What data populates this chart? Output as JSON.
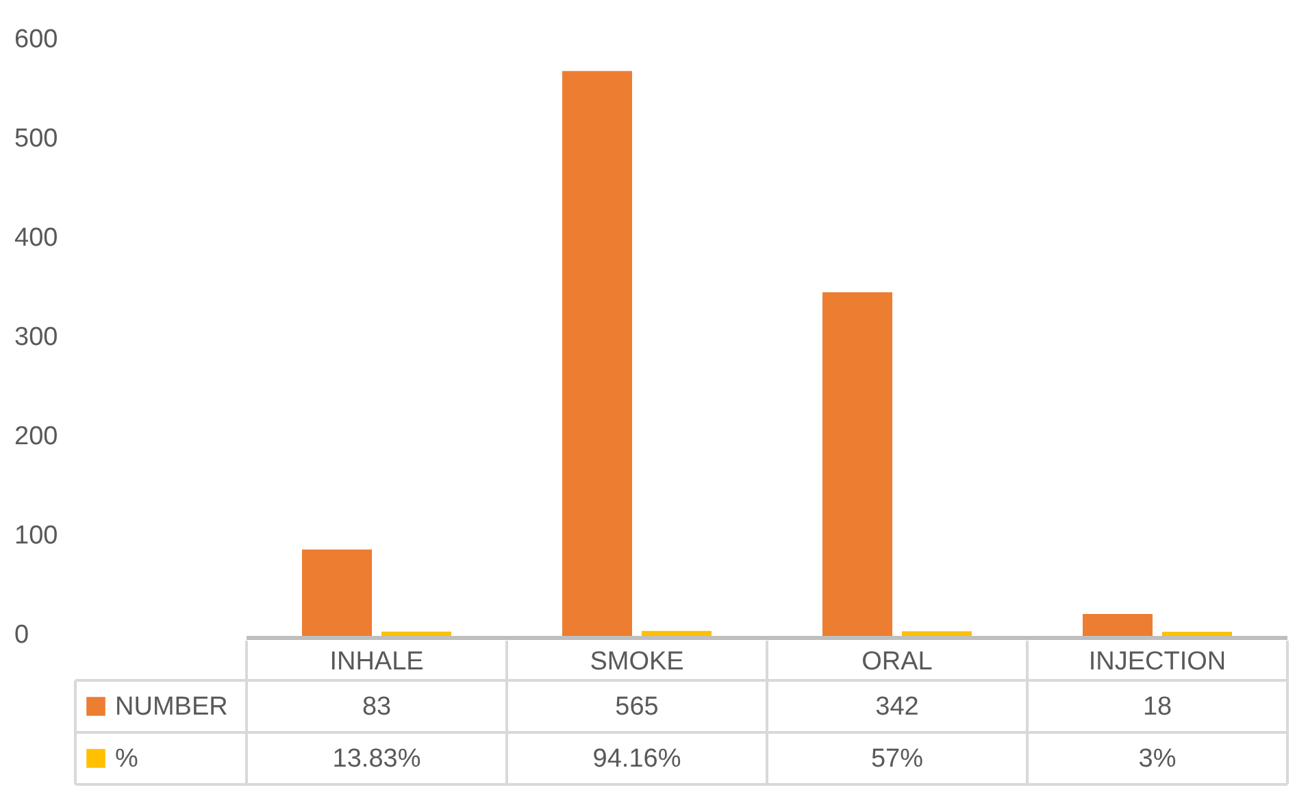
{
  "chart_data": {
    "type": "bar",
    "categories": [
      "INHALE",
      "SMOKE",
      "ORAL",
      "INJECTION"
    ],
    "series": [
      {
        "name": "NUMBER",
        "color": "#ed7d31",
        "values": [
          83,
          565,
          342,
          18
        ],
        "value_labels": [
          "83",
          "565",
          "342",
          "18"
        ]
      },
      {
        "name": "%",
        "color": "#ffc000",
        "values": [
          0.1383,
          0.9416,
          0.57,
          0.03
        ],
        "value_labels": [
          "13.83%",
          "94.16%",
          "57%",
          "3%"
        ]
      }
    ],
    "ylim": [
      0,
      600
    ],
    "yticks": [
      0,
      100,
      200,
      300,
      400,
      500,
      600
    ],
    "legend": "bottom"
  }
}
